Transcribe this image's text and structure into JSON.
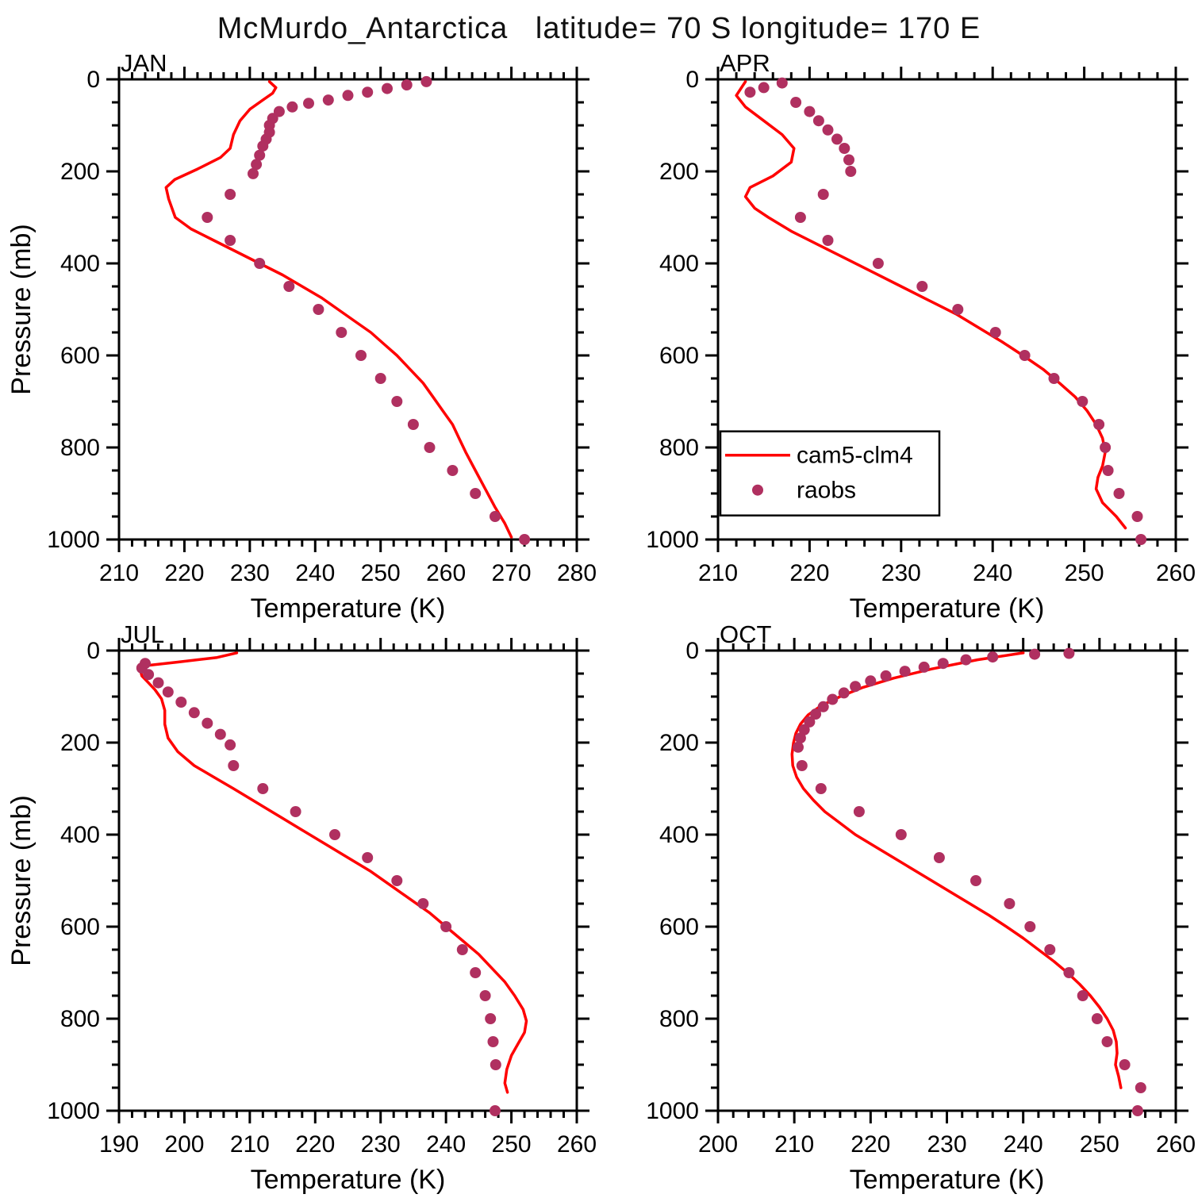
{
  "title": "McMurdo_Antarctica   latitude= 70 S longitude= 170 E",
  "chart_data": {
    "type": "line",
    "layout": "2x2 grid of vertical temperature profiles, pressure axis inverted (0 mb top, 1000 mb bottom)",
    "series_style": {
      "model": {
        "name": "cam5-clm4",
        "color": "#ff0000",
        "type": "line"
      },
      "obs": {
        "name": "raobs",
        "color": "#b03060",
        "type": "scatter"
      }
    },
    "legend": {
      "entries": [
        {
          "type": "line",
          "label": "cam5-clm4"
        },
        {
          "type": "marker",
          "label": "raobs"
        }
      ],
      "position": "inside APR panel, lower left"
    },
    "panels": [
      {
        "id": "jan",
        "label": "JAN",
        "xlabel": "Temperature (K)",
        "ylabel": "Pressure (mb)",
        "show_ylabel": true,
        "show_legend": false,
        "xlim": [
          210,
          280
        ],
        "xtick_step": 10,
        "x_minor_step": 2,
        "ylim": [
          0,
          1000
        ],
        "ytick_step": 200,
        "y_minor_step": 50,
        "model_points": [
          [
            233,
            5
          ],
          [
            234,
            18
          ],
          [
            233.5,
            30
          ],
          [
            232,
            45
          ],
          [
            230,
            65
          ],
          [
            228.5,
            90
          ],
          [
            227.5,
            120
          ],
          [
            227,
            150
          ],
          [
            225.5,
            170
          ],
          [
            222,
            195
          ],
          [
            218.5,
            218
          ],
          [
            217.2,
            235
          ],
          [
            217.6,
            260
          ],
          [
            218.6,
            300
          ],
          [
            221,
            325
          ],
          [
            224.5,
            350
          ],
          [
            228,
            375
          ],
          [
            231.5,
            400
          ],
          [
            235,
            425
          ],
          [
            238,
            450
          ],
          [
            241,
            475
          ],
          [
            243.5,
            500
          ],
          [
            246,
            525
          ],
          [
            248.5,
            550
          ],
          [
            250.5,
            575
          ],
          [
            252.5,
            600
          ],
          [
            254.5,
            630
          ],
          [
            256.5,
            660
          ],
          [
            258,
            690
          ],
          [
            259.5,
            720
          ],
          [
            261,
            750
          ],
          [
            262,
            780
          ],
          [
            263,
            810
          ],
          [
            264.5,
            850
          ],
          [
            266,
            890
          ],
          [
            267.5,
            930
          ],
          [
            269,
            965
          ],
          [
            270,
            995
          ]
        ],
        "obs_points": [
          [
            257,
            5
          ],
          [
            254,
            12
          ],
          [
            251,
            20
          ],
          [
            248,
            28
          ],
          [
            245,
            35
          ],
          [
            242,
            45
          ],
          [
            239,
            52
          ],
          [
            236.5,
            60
          ],
          [
            234.5,
            70
          ],
          [
            233.5,
            85
          ],
          [
            233,
            100
          ],
          [
            233,
            115
          ],
          [
            232.5,
            130
          ],
          [
            232,
            145
          ],
          [
            231.5,
            165
          ],
          [
            231,
            185
          ],
          [
            230.5,
            205
          ],
          [
            227,
            250
          ],
          [
            223.5,
            300
          ],
          [
            227,
            350
          ],
          [
            231.5,
            400
          ],
          [
            236,
            450
          ],
          [
            240.5,
            500
          ],
          [
            244,
            550
          ],
          [
            247,
            600
          ],
          [
            250,
            650
          ],
          [
            252.5,
            700
          ],
          [
            255,
            750
          ],
          [
            257.5,
            800
          ],
          [
            261,
            850
          ],
          [
            264.5,
            900
          ],
          [
            267.5,
            950
          ],
          [
            272,
            1000
          ]
        ]
      },
      {
        "id": "apr",
        "label": "APR",
        "xlabel": "Temperature (K)",
        "ylabel": "Pressure (mb)",
        "show_ylabel": false,
        "show_legend": true,
        "xlim": [
          210,
          260
        ],
        "xtick_step": 10,
        "x_minor_step": 2,
        "ylim": [
          0,
          1000
        ],
        "ytick_step": 200,
        "y_minor_step": 50,
        "model_points": [
          [
            213,
            5
          ],
          [
            212.5,
            20
          ],
          [
            212,
            35
          ],
          [
            213,
            60
          ],
          [
            215,
            90
          ],
          [
            217,
            120
          ],
          [
            218.3,
            150
          ],
          [
            218,
            180
          ],
          [
            216,
            210
          ],
          [
            213.5,
            235
          ],
          [
            213,
            255
          ],
          [
            214,
            280
          ],
          [
            215.5,
            300
          ],
          [
            218,
            330
          ],
          [
            221,
            360
          ],
          [
            224,
            390
          ],
          [
            227,
            420
          ],
          [
            230,
            450
          ],
          [
            233,
            480
          ],
          [
            236,
            510
          ],
          [
            238.5,
            540
          ],
          [
            241,
            570
          ],
          [
            243.3,
            600
          ],
          [
            245.5,
            630
          ],
          [
            247.3,
            660
          ],
          [
            249,
            690
          ],
          [
            250.3,
            720
          ],
          [
            251.3,
            750
          ],
          [
            252,
            780
          ],
          [
            252.3,
            810
          ],
          [
            252,
            840
          ],
          [
            251.5,
            865
          ],
          [
            251.3,
            890
          ],
          [
            252,
            920
          ],
          [
            253.5,
            950
          ],
          [
            254.5,
            975
          ]
        ],
        "obs_points": [
          [
            217,
            8
          ],
          [
            215,
            18
          ],
          [
            213.5,
            28
          ],
          [
            218.5,
            50
          ],
          [
            220,
            70
          ],
          [
            221,
            90
          ],
          [
            222,
            110
          ],
          [
            223,
            130
          ],
          [
            223.8,
            150
          ],
          [
            224.3,
            175
          ],
          [
            224.5,
            200
          ],
          [
            221.5,
            250
          ],
          [
            219,
            300
          ],
          [
            222,
            350
          ],
          [
            227.5,
            400
          ],
          [
            232.3,
            450
          ],
          [
            236.2,
            500
          ],
          [
            240.3,
            550
          ],
          [
            243.5,
            600
          ],
          [
            246.7,
            650
          ],
          [
            249.8,
            700
          ],
          [
            251.6,
            750
          ],
          [
            252.3,
            800
          ],
          [
            252.6,
            850
          ],
          [
            253.8,
            900
          ],
          [
            255.8,
            950
          ],
          [
            256.2,
            1000
          ]
        ]
      },
      {
        "id": "jul",
        "label": "JUL",
        "xlabel": "Temperature (K)",
        "ylabel": "Pressure (mb)",
        "show_ylabel": true,
        "show_legend": false,
        "xlim": [
          190,
          260
        ],
        "xtick_step": 10,
        "x_minor_step": 2,
        "ylim": [
          0,
          1000
        ],
        "ytick_step": 200,
        "y_minor_step": 50,
        "model_points": [
          [
            208,
            5
          ],
          [
            205,
            15
          ],
          [
            199,
            25
          ],
          [
            194.5,
            32
          ],
          [
            193.2,
            40
          ],
          [
            193.5,
            55
          ],
          [
            194.5,
            70
          ],
          [
            195.5,
            85
          ],
          [
            196.5,
            105
          ],
          [
            197,
            130
          ],
          [
            197,
            160
          ],
          [
            197.5,
            190
          ],
          [
            199,
            220
          ],
          [
            201.5,
            250
          ],
          [
            204.5,
            275
          ],
          [
            207.5,
            300
          ],
          [
            211,
            330
          ],
          [
            214.5,
            360
          ],
          [
            218,
            390
          ],
          [
            221.5,
            420
          ],
          [
            225,
            450
          ],
          [
            228.5,
            480
          ],
          [
            231.5,
            510
          ],
          [
            234.5,
            540
          ],
          [
            237.5,
            570
          ],
          [
            240,
            600
          ],
          [
            242.5,
            630
          ],
          [
            245,
            660
          ],
          [
            247,
            690
          ],
          [
            249,
            720
          ],
          [
            250.5,
            750
          ],
          [
            251.8,
            780
          ],
          [
            252.3,
            805
          ],
          [
            252,
            830
          ],
          [
            251,
            855
          ],
          [
            250,
            880
          ],
          [
            249.3,
            910
          ],
          [
            249,
            940
          ],
          [
            249.4,
            960
          ]
        ],
        "obs_points": [
          [
            194,
            28
          ],
          [
            193.5,
            38
          ],
          [
            194.5,
            52
          ],
          [
            196,
            70
          ],
          [
            197.5,
            90
          ],
          [
            199.5,
            112
          ],
          [
            201.5,
            135
          ],
          [
            203.5,
            158
          ],
          [
            205.5,
            182
          ],
          [
            207,
            205
          ],
          [
            207.5,
            250
          ],
          [
            212,
            300
          ],
          [
            217,
            350
          ],
          [
            223,
            400
          ],
          [
            228,
            450
          ],
          [
            232.5,
            500
          ],
          [
            236.5,
            550
          ],
          [
            240,
            600
          ],
          [
            242.5,
            650
          ],
          [
            244.5,
            700
          ],
          [
            246,
            750
          ],
          [
            246.8,
            800
          ],
          [
            247.2,
            850
          ],
          [
            247.6,
            900
          ],
          [
            247.5,
            1000
          ]
        ]
      },
      {
        "id": "oct",
        "label": "OCT",
        "xlabel": "Temperature (K)",
        "ylabel": "Pressure (mb)",
        "show_ylabel": false,
        "show_legend": false,
        "xlim": [
          200,
          260
        ],
        "xtick_step": 10,
        "x_minor_step": 2,
        "ylim": [
          0,
          1000
        ],
        "ytick_step": 200,
        "y_minor_step": 50,
        "model_points": [
          [
            240,
            5
          ],
          [
            234,
            20
          ],
          [
            228,
            40
          ],
          [
            223,
            60
          ],
          [
            219,
            80
          ],
          [
            216,
            100
          ],
          [
            213.5,
            120
          ],
          [
            211.8,
            140
          ],
          [
            210.8,
            160
          ],
          [
            210.2,
            180
          ],
          [
            209.9,
            200
          ],
          [
            209.7,
            225
          ],
          [
            209.8,
            250
          ],
          [
            210.3,
            275
          ],
          [
            211.2,
            300
          ],
          [
            212.5,
            325
          ],
          [
            214,
            350
          ],
          [
            216,
            375
          ],
          [
            218,
            400
          ],
          [
            220.5,
            425
          ],
          [
            223,
            450
          ],
          [
            225.5,
            475
          ],
          [
            228,
            500
          ],
          [
            230.5,
            525
          ],
          [
            233,
            550
          ],
          [
            235.5,
            575
          ],
          [
            237.8,
            600
          ],
          [
            240,
            625
          ],
          [
            242,
            650
          ],
          [
            244,
            675
          ],
          [
            245.8,
            700
          ],
          [
            247.4,
            725
          ],
          [
            248.8,
            750
          ],
          [
            250,
            775
          ],
          [
            251,
            800
          ],
          [
            251.8,
            825
          ],
          [
            252.2,
            850
          ],
          [
            252.3,
            875
          ],
          [
            252.1,
            900
          ],
          [
            252.5,
            925
          ],
          [
            252.8,
            950
          ]
        ],
        "obs_points": [
          [
            246,
            6
          ],
          [
            241.5,
            8
          ],
          [
            236,
            14
          ],
          [
            232.5,
            20
          ],
          [
            229.5,
            28
          ],
          [
            227,
            36
          ],
          [
            224.5,
            45
          ],
          [
            222,
            55
          ],
          [
            220,
            66
          ],
          [
            218,
            78
          ],
          [
            216.5,
            92
          ],
          [
            215,
            106
          ],
          [
            213.8,
            122
          ],
          [
            212.8,
            138
          ],
          [
            212,
            155
          ],
          [
            211.3,
            172
          ],
          [
            210.8,
            190
          ],
          [
            210.5,
            210
          ],
          [
            211,
            250
          ],
          [
            213.5,
            300
          ],
          [
            218.5,
            350
          ],
          [
            224,
            400
          ],
          [
            229,
            450
          ],
          [
            233.8,
            500
          ],
          [
            238.2,
            550
          ],
          [
            240.9,
            600
          ],
          [
            243.5,
            650
          ],
          [
            246,
            700
          ],
          [
            247.8,
            750
          ],
          [
            249.7,
            800
          ],
          [
            251,
            850
          ],
          [
            253.3,
            900
          ],
          [
            255.4,
            950
          ],
          [
            255,
            1000
          ]
        ]
      }
    ]
  }
}
